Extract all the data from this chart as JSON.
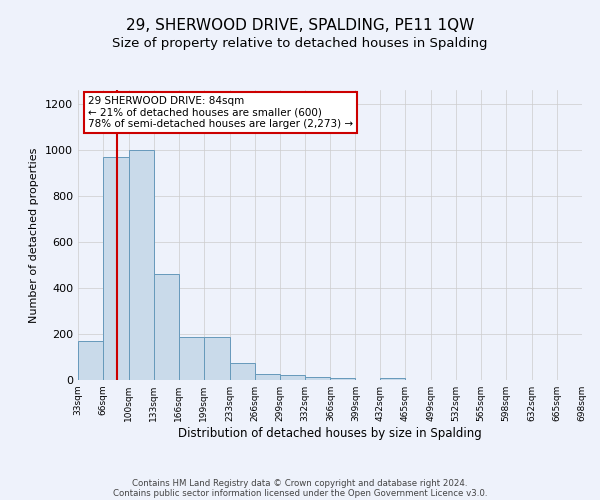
{
  "title": "29, SHERWOOD DRIVE, SPALDING, PE11 1QW",
  "subtitle": "Size of property relative to detached houses in Spalding",
  "xlabel": "Distribution of detached houses by size in Spalding",
  "ylabel": "Number of detached properties",
  "bin_edges": [
    33,
    66,
    100,
    133,
    166,
    199,
    233,
    266,
    299,
    332,
    366,
    399,
    432,
    465,
    499,
    532,
    565,
    598,
    632,
    665,
    698
  ],
  "bar_heights": [
    170,
    970,
    1000,
    460,
    185,
    185,
    75,
    25,
    20,
    15,
    10,
    0,
    10,
    0,
    0,
    0,
    0,
    0,
    0,
    0
  ],
  "bar_color": "#c9daea",
  "bar_edge_color": "#6699bb",
  "property_size": 84,
  "red_line_color": "#cc0000",
  "annotation_line1": "29 SHERWOOD DRIVE: 84sqm",
  "annotation_line2": "← 21% of detached houses are smaller (600)",
  "annotation_line3": "78% of semi-detached houses are larger (2,273) →",
  "annotation_box_color": "#ffffff",
  "annotation_box_edge": "#cc0000",
  "ylim": [
    0,
    1260
  ],
  "yticks": [
    0,
    200,
    400,
    600,
    800,
    1000,
    1200
  ],
  "grid_color": "#cccccc",
  "background_color": "#eef2fb",
  "title_fontsize": 11,
  "subtitle_fontsize": 9.5,
  "footer_line1": "Contains HM Land Registry data © Crown copyright and database right 2024.",
  "footer_line2": "Contains public sector information licensed under the Open Government Licence v3.0.",
  "tick_labels": [
    "33sqm",
    "66sqm",
    "100sqm",
    "133sqm",
    "166sqm",
    "199sqm",
    "233sqm",
    "266sqm",
    "299sqm",
    "332sqm",
    "366sqm",
    "399sqm",
    "432sqm",
    "465sqm",
    "499sqm",
    "532sqm",
    "565sqm",
    "598sqm",
    "632sqm",
    "665sqm",
    "698sqm"
  ]
}
